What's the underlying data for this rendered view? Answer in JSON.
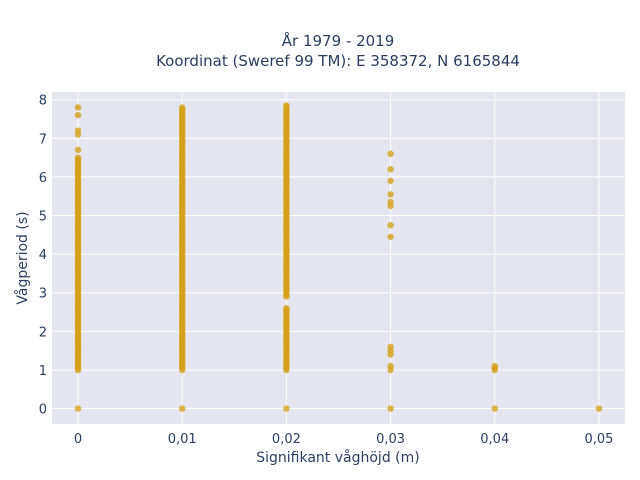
{
  "chart_data": {
    "type": "scatter",
    "title_line1": "År 1979 - 2019",
    "title_line2": "Koordinat (Sweref 99 TM): E 358372, N 6165844",
    "xlabel": "Signifikant våghöjd (m)",
    "ylabel": "Vågperiod (s)",
    "xlim": [
      -0.0025,
      0.0525
    ],
    "ylim": [
      -0.4,
      8.2
    ],
    "x_ticks": [
      0,
      0.01,
      0.02,
      0.03,
      0.04,
      0.05
    ],
    "x_tick_labels": [
      "0",
      "0,01",
      "0,02",
      "0,03",
      "0,04",
      "0,05"
    ],
    "y_ticks": [
      0,
      1,
      2,
      3,
      4,
      5,
      6,
      7,
      8
    ],
    "y_tick_labels": [
      "0",
      "1",
      "2",
      "3",
      "4",
      "5",
      "6",
      "7",
      "8"
    ],
    "grid": true,
    "marker_color": "#D4A017",
    "plot_bg": "#E5E5F0",
    "groups": [
      {
        "x": 0,
        "y_min": 1.0,
        "y_max": 6.5,
        "extra_y": [
          0,
          6.7,
          7.1,
          7.2,
          7.6,
          7.8
        ]
      },
      {
        "x": 0.01,
        "y_min": 1.0,
        "y_max": 7.8,
        "extra_y": [
          0
        ]
      },
      {
        "x": 0.02,
        "y_min": 1.0,
        "y_max": 7.85,
        "gap": [
          2.6,
          2.85
        ],
        "extra_y": [
          0
        ]
      },
      {
        "x": 0.03,
        "y_min": null,
        "y_max": null,
        "extra_y": [
          0,
          1.0,
          1.1,
          1.4,
          1.5,
          1.6,
          4.45,
          4.75,
          5.25,
          5.35,
          5.55,
          5.9,
          6.2,
          6.6
        ]
      },
      {
        "x": 0.04,
        "y_min": null,
        "y_max": null,
        "extra_y": [
          0,
          1.0,
          1.05,
          1.1
        ]
      },
      {
        "x": 0.05,
        "y_min": null,
        "y_max": null,
        "extra_y": [
          0
        ]
      }
    ]
  }
}
